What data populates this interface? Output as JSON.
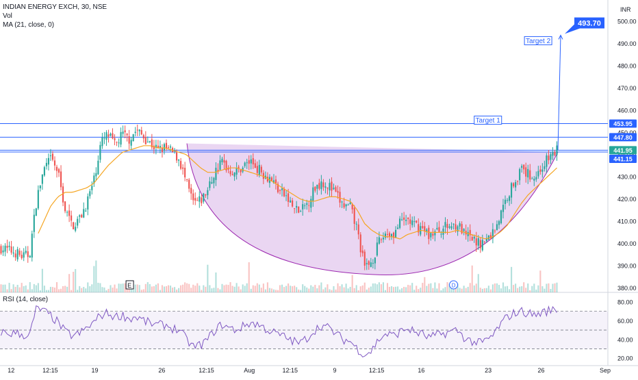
{
  "header": {
    "symbol_line": "INDIAN ENERGY EXCH, 30, NSE",
    "vol_label": "Vol",
    "ma_label": "MA (21, close, 0)",
    "currency": "INR"
  },
  "rsi": {
    "label": "RSI (14, close)",
    "ticks": [
      "80.00",
      "60.00",
      "40.00",
      "20.00"
    ]
  },
  "annotations": {
    "target1": "Target 1",
    "target2": "Target 2",
    "target_value": "493.70",
    "event_e": "E",
    "event_d": "D"
  },
  "price_labels": [
    "453.95",
    "447.80",
    "441.95",
    "441.15"
  ],
  "colors": {
    "up": "#26a69a",
    "down": "#ef5350",
    "ma": "#f5a623",
    "rsi": "#7e57c2",
    "line": "#2962ff",
    "cup_fill": "#e1c5ec"
  },
  "chart_data": {
    "type": "candlestick",
    "ylim": [
      378,
      508
    ],
    "y_ticks": [
      380,
      390,
      400,
      410,
      420,
      430,
      440,
      450,
      460,
      470,
      480,
      490,
      500
    ],
    "x_ticks": [
      "12",
      "12:15",
      "19",
      "26",
      "12:15",
      "Aug",
      "12:15",
      "9",
      "12:15",
      "16",
      "23",
      "26",
      "Sep"
    ],
    "levels": [
      {
        "name": "Target 1",
        "value": 453.95
      },
      {
        "name": "",
        "value": 447.8
      },
      {
        "name": "",
        "value": 441.95
      },
      {
        "name": "",
        "value": 441.15
      }
    ],
    "target_2": 493.7,
    "close_path": [
      398,
      397,
      396,
      394,
      395,
      420,
      433,
      438,
      432,
      415,
      408,
      411,
      418,
      428,
      445,
      449,
      444,
      449,
      447,
      451,
      448,
      445,
      442,
      443,
      441,
      438,
      427,
      418,
      419,
      424,
      432,
      437,
      433,
      432,
      435,
      437,
      434,
      431,
      429,
      424,
      421,
      416,
      414,
      418,
      425,
      428,
      426,
      422,
      417,
      416,
      406,
      389,
      392,
      400,
      405,
      404,
      409,
      411,
      408,
      407,
      404,
      405,
      407,
      408,
      409,
      404,
      402,
      400,
      401,
      405,
      412,
      421,
      428,
      433,
      431,
      430,
      435,
      439,
      442
    ],
    "rsi_path": [
      48,
      46,
      47,
      45,
      44,
      74,
      70,
      65,
      58,
      48,
      44,
      46,
      52,
      58,
      66,
      68,
      64,
      66,
      62,
      64,
      60,
      57,
      55,
      56,
      52,
      50,
      40,
      32,
      34,
      40,
      50,
      56,
      52,
      50,
      54,
      58,
      56,
      52,
      48,
      45,
      42,
      38,
      36,
      42,
      50,
      55,
      52,
      46,
      40,
      38,
      30,
      24,
      28,
      40,
      46,
      44,
      48,
      52,
      48,
      46,
      42,
      44,
      46,
      48,
      50,
      42,
      38,
      36,
      38,
      44,
      55,
      64,
      68,
      70,
      68,
      66,
      69,
      71,
      72
    ],
    "ma_path": [
      null,
      null,
      null,
      null,
      null,
      403,
      410,
      417,
      421,
      423,
      423,
      424,
      425,
      427,
      431,
      435,
      438,
      441,
      442,
      443,
      444,
      444,
      443,
      443,
      442,
      441,
      440,
      437,
      434,
      432,
      432,
      433,
      434,
      434,
      433,
      432,
      431,
      430,
      428,
      426,
      424,
      422,
      420,
      419,
      419,
      420,
      421,
      421,
      420,
      419,
      415,
      409,
      406,
      404,
      403,
      403,
      402,
      404,
      405,
      406,
      405,
      405,
      405,
      405,
      406,
      405,
      404,
      403,
      402,
      403,
      405,
      408,
      413,
      418,
      422,
      425,
      428,
      431,
      434
    ],
    "rsi_ylim": [
      15,
      88
    ]
  }
}
